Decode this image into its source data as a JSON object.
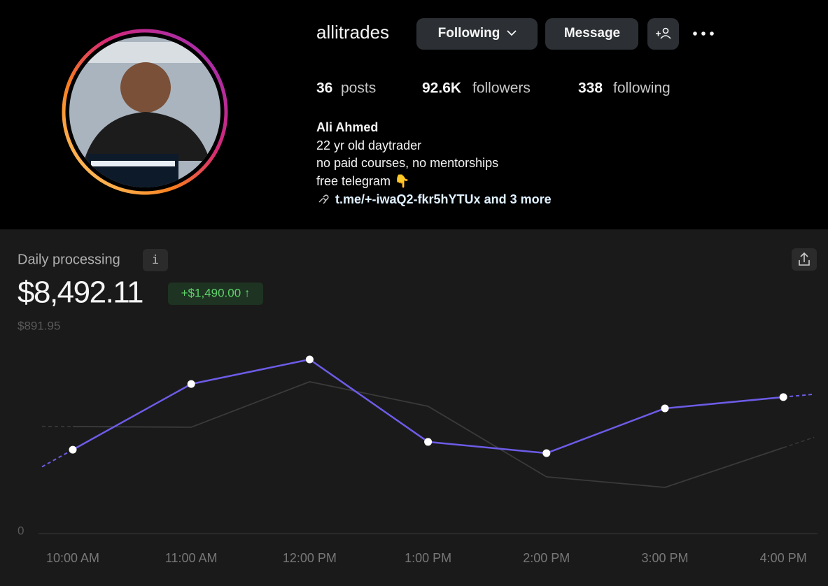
{
  "profile": {
    "username": "allitrades",
    "buttons": {
      "following": "Following",
      "message": "Message"
    },
    "stats": {
      "posts": {
        "count": "36",
        "label": "posts"
      },
      "followers": {
        "count": "92.6K",
        "label": "followers"
      },
      "following": {
        "count": "338",
        "label": "following"
      }
    },
    "bio": {
      "name": "Ali Ahmed",
      "lines": [
        "22 yr old daytrader",
        "no paid courses, no mentorships",
        "free telegram 👇"
      ],
      "link": "t.me/+-iwaQ2-fkr5hYTUx and 3 more"
    }
  },
  "chart_data": {
    "type": "line",
    "title": "Daily processing",
    "total": "$8,492.11",
    "change": "+$1,490.00 ↑",
    "categories": [
      "10:00 AM",
      "11:00 AM",
      "12:00 PM",
      "1:00 PM",
      "2:00 PM",
      "3:00 PM",
      "4:00 PM"
    ],
    "series": [
      {
        "color": "#6c5ce7",
        "values": [
          365,
          651,
          758,
          399,
          350,
          545,
          594
        ]
      },
      {
        "color": "#3a3a3a",
        "values": [
          466,
          463,
          661,
          554,
          247,
          201,
          374
        ]
      }
    ],
    "ylim": [
      0,
      891.95
    ],
    "yticks": [
      0,
      {
        "value": 891.95,
        "label": "$891.95"
      }
    ]
  }
}
